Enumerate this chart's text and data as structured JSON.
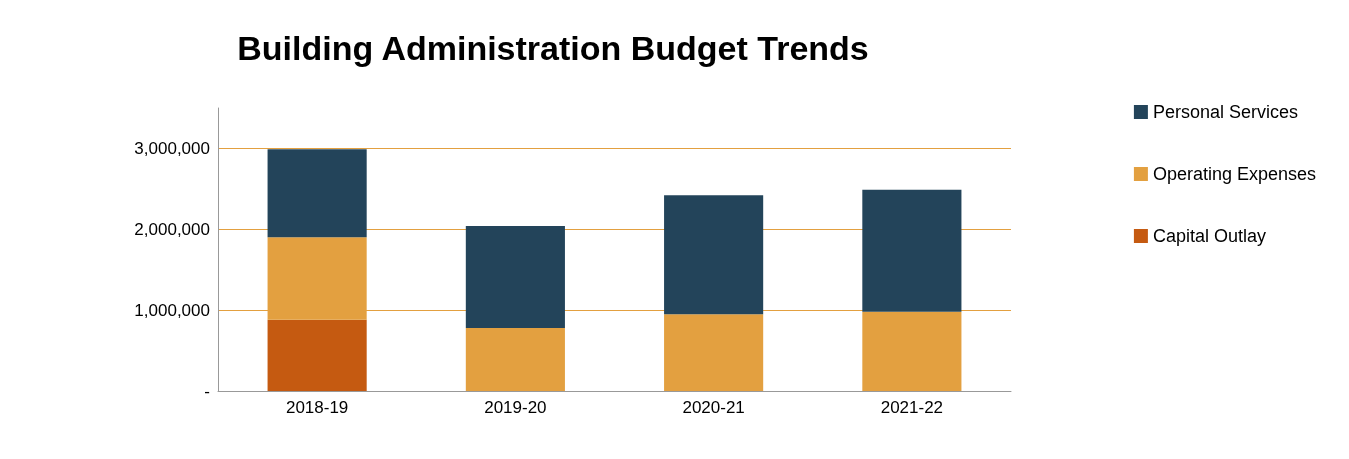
{
  "chart_data": {
    "type": "bar",
    "title": "Building Administration Budget Trends",
    "categories": [
      "2018-19",
      "2019-20",
      "2020-21",
      "2021-22"
    ],
    "stacked": true,
    "series": [
      {
        "name": "Capital Outlay",
        "color": "#c55a11",
        "values": [
          880000,
          0,
          0,
          0
        ]
      },
      {
        "name": "Operating Expenses",
        "color": "#e3a040",
        "values": [
          1020000,
          780000,
          950000,
          980000
        ]
      },
      {
        "name": "Personal Services",
        "color": "#23445a",
        "values": [
          1090000,
          1260000,
          1470000,
          1510000
        ]
      }
    ],
    "ylim": [
      0,
      3500000
    ],
    "yticks": [
      {
        "value": 0,
        "label": "-"
      },
      {
        "value": 1000000,
        "label": "1,000,000"
      },
      {
        "value": 2000000,
        "label": "2,000,000"
      },
      {
        "value": 3000000,
        "label": "3,000,000"
      }
    ],
    "grid": "y",
    "legend": "right"
  }
}
